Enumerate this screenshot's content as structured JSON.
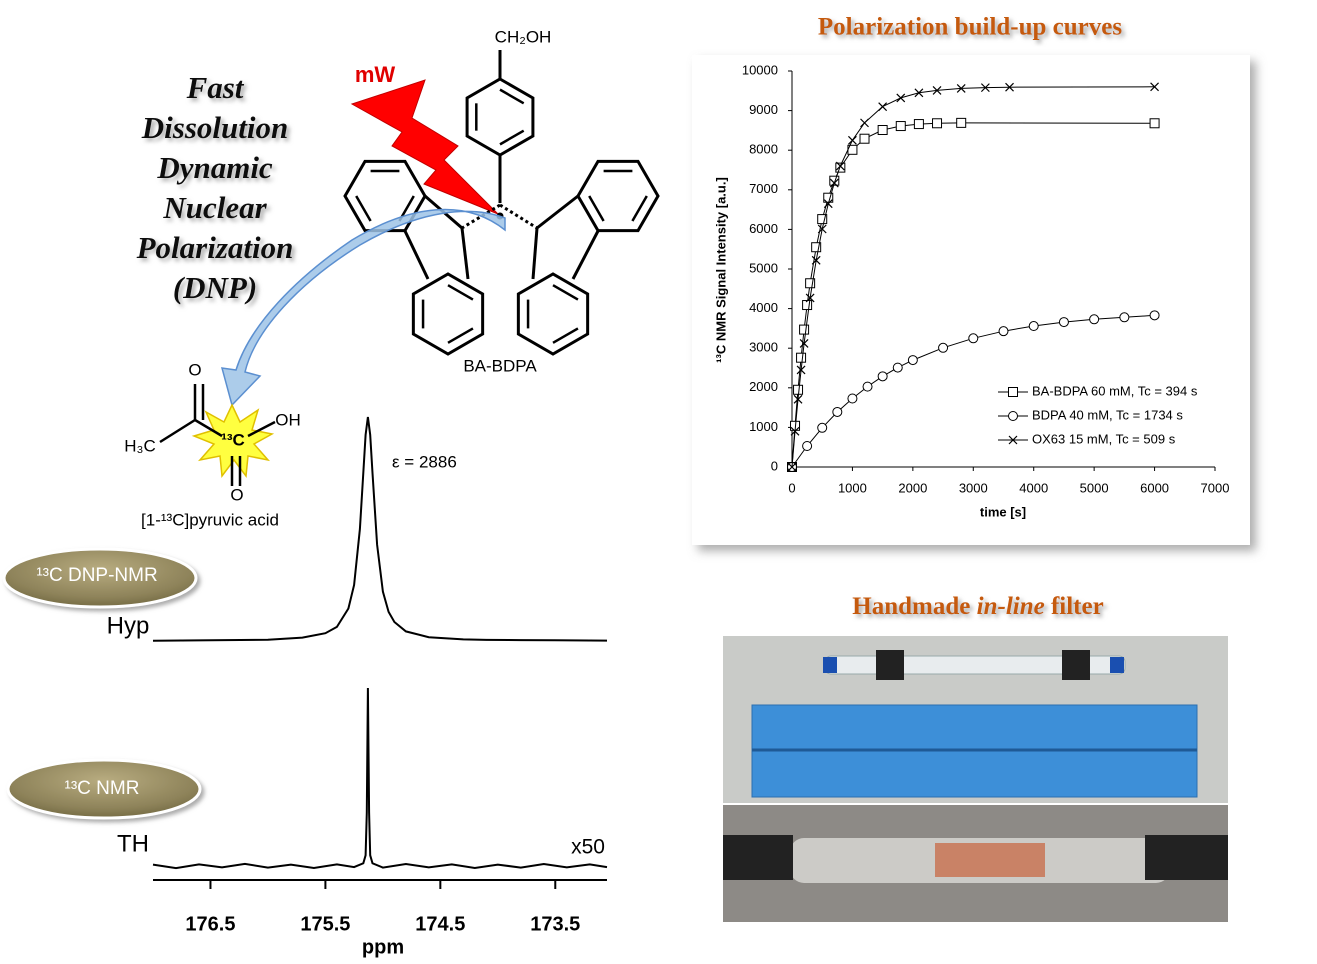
{
  "left_title_lines": [
    "Fast",
    "Dissolution",
    "Dynamic",
    "Nuclear",
    "Polarization",
    "(DNP)"
  ],
  "molecule": {
    "radical_label": "BA-BDPA",
    "substituent": "CH₂OH",
    "microwave": "mW"
  },
  "pyruvic": {
    "carbonyl_o": "O",
    "hydroxyl": "OH",
    "methyl": "H₃C",
    "labeled_carbon": "¹³C",
    "acid_o": "O",
    "name": "[1-¹³C]pyruvic acid"
  },
  "enhancement": "ε = 2886",
  "badges": [
    "¹³C DNP-NMR",
    "¹³C  NMR"
  ],
  "filter_title": {
    "before": "Handmade",
    "italic": "in-line",
    "after": "filter"
  },
  "chart_data": [
    {
      "type": "scatter",
      "title": "Polarization build-up curves",
      "xlabel": "time [s]",
      "ylabel": "¹³C NMR Signal Intensity [a.u.]",
      "xlim": [
        0,
        7000
      ],
      "xticks": [
        0,
        1000,
        2000,
        3000,
        4000,
        5000,
        6000,
        7000
      ],
      "ylim": [
        0,
        10000
      ],
      "yticks": [
        0,
        1000,
        2000,
        3000,
        4000,
        5000,
        6000,
        7000,
        8000,
        9000,
        10000
      ],
      "grid": false,
      "legend": "lower right",
      "series": [
        {
          "name": "BA-BDPA 60 mM, Tc = 394 s",
          "color": "#000000",
          "marker": "square",
          "x": [
            0,
            50,
            100,
            150,
            200,
            250,
            300,
            400,
            500,
            600,
            700,
            800,
            1000,
            1200,
            1500,
            1800,
            2100,
            2400,
            2800,
            6000
          ],
          "values": [
            0,
            1040,
            1950,
            2760,
            3470,
            4090,
            4640,
            5550,
            6260,
            6800,
            7230,
            7560,
            8010,
            8290,
            8510,
            8610,
            8660,
            8680,
            8690,
            8680
          ]
        },
        {
          "name": "BDPA 40 mM, Tc = 1734 s",
          "color": "#000000",
          "marker": "circle",
          "x": [
            0,
            250,
            500,
            750,
            1000,
            1250,
            1500,
            1750,
            2000,
            2500,
            3000,
            3500,
            4000,
            4500,
            5000,
            5500,
            6000
          ],
          "values": [
            0,
            530,
            990,
            1390,
            1730,
            2030,
            2290,
            2510,
            2700,
            3010,
            3250,
            3430,
            3560,
            3660,
            3730,
            3780,
            3830
          ]
        },
        {
          "name": "OX63 15 mM, Tc = 509 s",
          "color": "#000000",
          "marker": "x",
          "x": [
            0,
            50,
            100,
            150,
            200,
            300,
            400,
            500,
            600,
            700,
            800,
            1000,
            1200,
            1500,
            1800,
            2100,
            2400,
            2800,
            3200,
            3600,
            6000
          ],
          "values": [
            0,
            900,
            1710,
            2450,
            3120,
            4270,
            5220,
            6010,
            6650,
            7170,
            7600,
            8250,
            8690,
            9100,
            9320,
            9450,
            9510,
            9560,
            9580,
            9590,
            9600
          ]
        }
      ]
    },
    {
      "type": "line",
      "xlabel": "ppm",
      "xlim": [
        177.0,
        173.05
      ],
      "xticks": [
        176.5,
        175.5,
        174.5,
        173.5
      ],
      "series": [
        {
          "name": "Hyp",
          "color": "#000000",
          "x": [
            177.0,
            176.5,
            176.0,
            175.7,
            175.5,
            175.4,
            175.3,
            175.25,
            175.2,
            175.17,
            175.15,
            175.13,
            175.11,
            175.09,
            175.05,
            175.0,
            174.95,
            174.9,
            174.8,
            174.6,
            174.3,
            174.1,
            173.8,
            173.5,
            173.05
          ],
          "values": [
            0.1,
            0.3,
            0.6,
            1.5,
            3.5,
            6.3,
            14.5,
            25,
            50,
            75,
            92,
            100,
            92,
            75,
            43,
            22,
            13,
            8.5,
            4.3,
            1.7,
            0.7,
            0.5,
            0.4,
            0.3,
            0.2
          ]
        },
        {
          "name": "TH",
          "color": "#000000",
          "scale_label": "x50",
          "x": [
            177.0,
            176.8,
            176.6,
            176.4,
            176.2,
            176.0,
            175.8,
            175.6,
            175.4,
            175.25,
            175.17,
            175.15,
            175.14,
            175.13,
            175.12,
            175.11,
            175.09,
            175.0,
            174.8,
            174.6,
            174.4,
            174.2,
            174.0,
            173.8,
            173.6,
            173.4,
            173.2,
            173.05
          ],
          "values": [
            0.8,
            -1.2,
            0.9,
            -0.8,
            1.2,
            -0.9,
            0.8,
            -1.1,
            0.9,
            -0.6,
            1.5,
            6,
            30,
            100,
            30,
            6,
            1.5,
            -0.9,
            1.1,
            -0.8,
            0.9,
            -1.1,
            0.8,
            -0.9,
            1.1,
            -0.8,
            0.9,
            -0.6
          ]
        }
      ]
    }
  ]
}
